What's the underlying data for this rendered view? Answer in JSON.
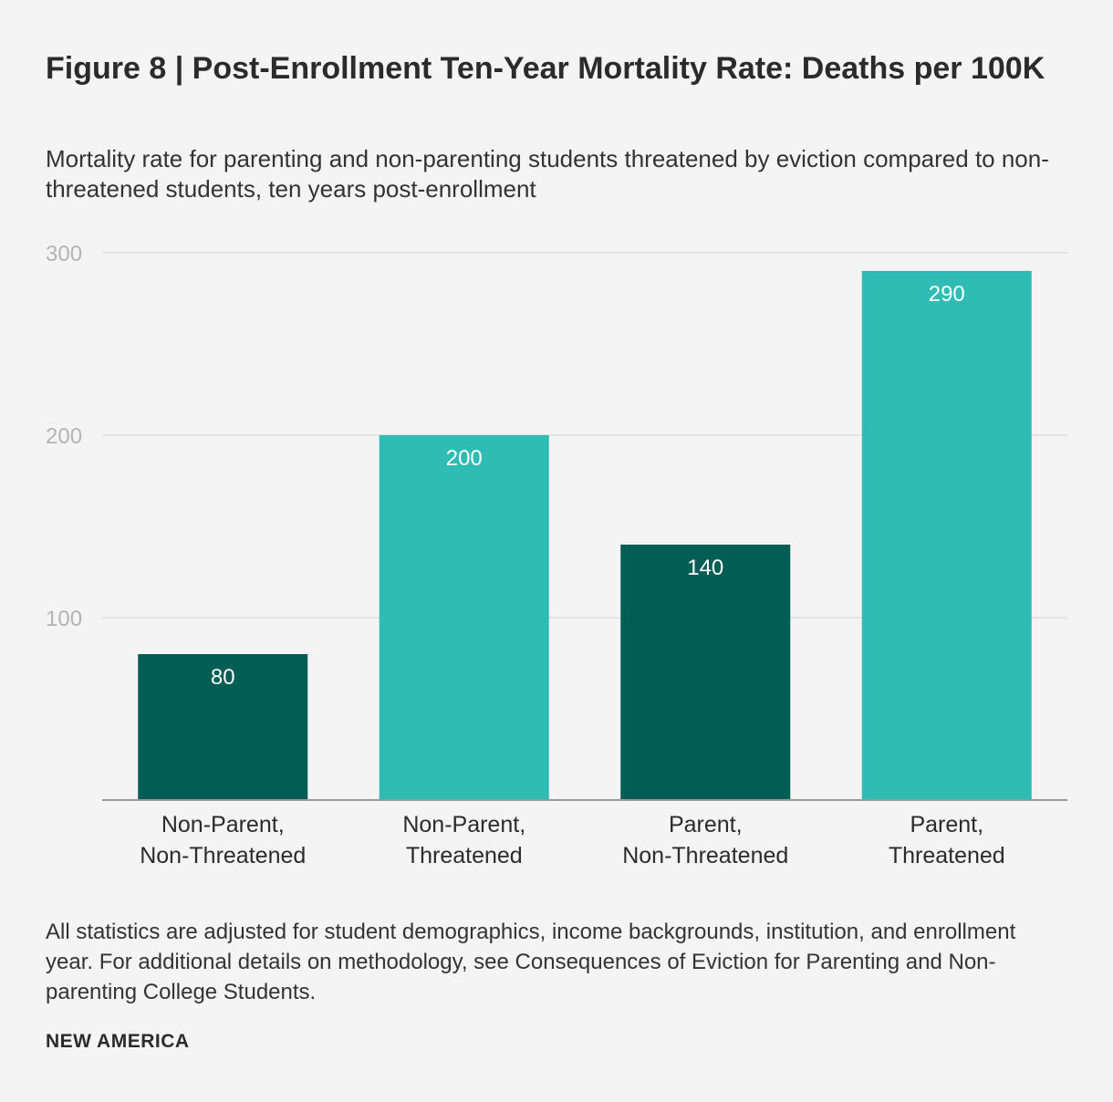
{
  "chart_data": {
    "type": "bar",
    "title": "Figure 8 | Post-Enrollment Ten-Year Mortality Rate: Deaths per 100K",
    "subtitle": "Mortality rate for parenting and non-parenting students threatened by eviction compared to non-threatened students, ten years post-enrollment",
    "categories": [
      [
        "Non-Parent,",
        "Non-Threatened"
      ],
      [
        "Non-Parent,",
        "Threatened"
      ],
      [
        "Parent,",
        "Non-Threatened"
      ],
      [
        "Parent,",
        "Threatened"
      ]
    ],
    "values": [
      80,
      200,
      140,
      290
    ],
    "data_labels": [
      "80",
      "200",
      "140",
      "290"
    ],
    "bar_colors": [
      "#025e55",
      "#2ebcb4",
      "#025e55",
      "#2ebcb4"
    ],
    "yticks": [
      100,
      200,
      300
    ],
    "ylim": [
      0,
      300
    ],
    "grid": true,
    "xlabel": "",
    "ylabel": ""
  },
  "caption": "All statistics are adjusted for student demographics, income backgrounds, institution, and enrollment year. For additional details on methodology, see Consequences of Eviction for Parenting and Non-parenting College Students.",
  "brand": "NEW AMERICA",
  "colors": {
    "background": "#f4f4f4",
    "grid": "#dddddd",
    "axis": "#999999"
  }
}
